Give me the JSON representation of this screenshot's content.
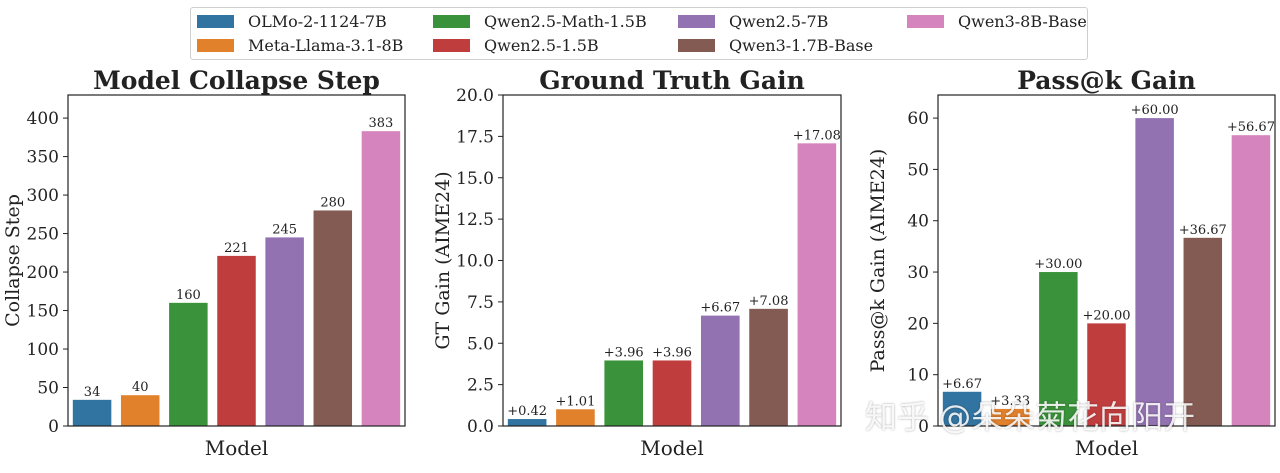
{
  "legend": [
    {
      "name": "OLMo-2-1124-7B",
      "color": "#3274a1"
    },
    {
      "name": "Meta-Llama-3.1-8B",
      "color": "#e1812c"
    },
    {
      "name": "Qwen2.5-Math-1.5B",
      "color": "#3a923a"
    },
    {
      "name": "Qwen2.5-1.5B",
      "color": "#c03d3e"
    },
    {
      "name": "Qwen2.5-7B",
      "color": "#9372b2"
    },
    {
      "name": "Qwen3-1.7B-Base",
      "color": "#845b53"
    },
    {
      "name": "Qwen3-8B-Base",
      "color": "#d684bd"
    }
  ],
  "chart_data": [
    {
      "type": "bar",
      "title": "Model Collapse Step",
      "xlabel": "Model",
      "ylabel": "Collapse Step",
      "categories": [
        "OLMo-2-1124-7B",
        "Meta-Llama-3.1-8B",
        "Qwen2.5-Math-1.5B",
        "Qwen2.5-1.5B",
        "Qwen2.5-7B",
        "Qwen3-1.7B-Base",
        "Qwen3-8B-Base"
      ],
      "values": [
        34,
        40,
        160,
        221,
        245,
        280,
        383
      ],
      "value_labels": [
        "34",
        "40",
        "160",
        "221",
        "245",
        "280",
        "383"
      ],
      "ylim": [
        0,
        430
      ],
      "yticks": [
        0,
        50,
        100,
        150,
        200,
        250,
        300,
        350,
        400
      ],
      "ytick_labels": [
        "0",
        "50",
        "100",
        "150",
        "200",
        "250",
        "300",
        "350",
        "400"
      ],
      "grid": false
    },
    {
      "type": "bar",
      "title": "Ground Truth Gain",
      "xlabel": "Model",
      "ylabel": "GT Gain (AIME24)",
      "categories": [
        "OLMo-2-1124-7B",
        "Meta-Llama-3.1-8B",
        "Qwen2.5-Math-1.5B",
        "Qwen2.5-1.5B",
        "Qwen2.5-7B",
        "Qwen3-1.7B-Base",
        "Qwen3-8B-Base"
      ],
      "values": [
        0.42,
        1.01,
        3.96,
        3.96,
        6.67,
        7.08,
        17.08
      ],
      "value_labels": [
        "+0.42",
        "+1.01",
        "+3.96",
        "+3.96",
        "+6.67",
        "+7.08",
        "+17.08"
      ],
      "ylim": [
        0,
        20
      ],
      "yticks": [
        0,
        2.5,
        5,
        7.5,
        10,
        12.5,
        15,
        17.5,
        20
      ],
      "ytick_labels": [
        "0.0",
        "2.5",
        "5.0",
        "7.5",
        "10.0",
        "12.5",
        "15.0",
        "17.5",
        "20.0"
      ],
      "grid": false
    },
    {
      "type": "bar",
      "title": "Pass@k Gain",
      "xlabel": "Model",
      "ylabel": "Pass@k Gain (AIME24)",
      "categories": [
        "OLMo-2-1124-7B",
        "Meta-Llama-3.1-8B",
        "Qwen2.5-Math-1.5B",
        "Qwen2.5-1.5B",
        "Qwen2.5-7B",
        "Qwen3-1.7B-Base",
        "Qwen3-8B-Base"
      ],
      "values": [
        6.67,
        3.33,
        30.0,
        20.0,
        60.0,
        36.67,
        56.67
      ],
      "value_labels": [
        "+6.67",
        "+3.33",
        "+30.00",
        "+20.00",
        "+60.00",
        "+36.67",
        "+56.67"
      ],
      "ylim": [
        0,
        64.5
      ],
      "yticks": [
        0,
        10,
        20,
        30,
        40,
        50,
        60
      ],
      "ytick_labels": [
        "0",
        "10",
        "20",
        "30",
        "40",
        "50",
        "60"
      ],
      "grid": false
    }
  ],
  "watermark": "知乎 @朵朵菊花向阳开"
}
